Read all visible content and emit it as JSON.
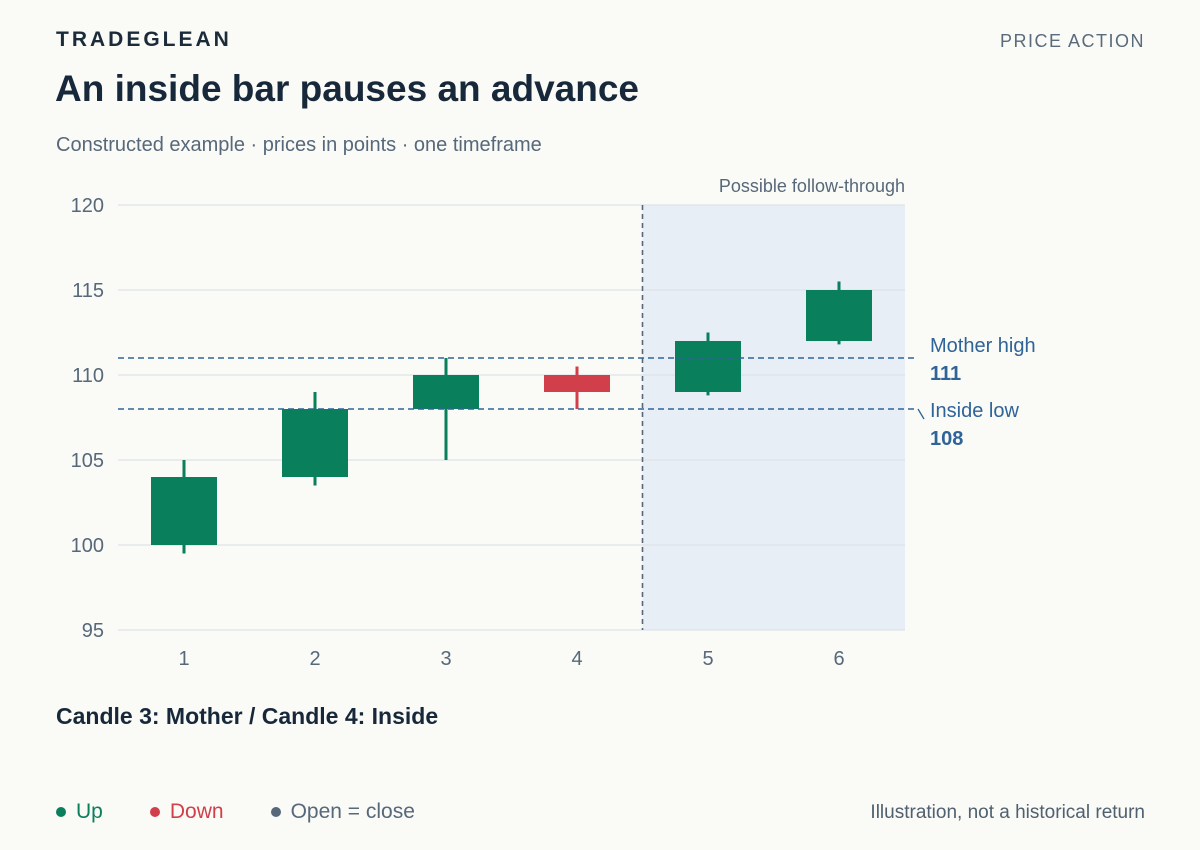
{
  "header": {
    "brand": "TRADEGLEAN",
    "category": "PRICE ACTION",
    "title": "An inside bar pauses an advance",
    "subtitle": "Constructed example · prices in points · one timeframe"
  },
  "chart_data": {
    "type": "candlestick",
    "categories": [
      "1",
      "2",
      "3",
      "4",
      "5",
      "6"
    ],
    "candles": [
      {
        "x": "1",
        "open": 100,
        "high": 105,
        "low": 99.5,
        "close": 104
      },
      {
        "x": "2",
        "open": 104,
        "high": 109,
        "low": 103.5,
        "close": 108
      },
      {
        "x": "3",
        "open": 108,
        "high": 111,
        "low": 105,
        "close": 110
      },
      {
        "x": "4",
        "open": 110,
        "high": 110.5,
        "low": 108,
        "close": 109
      },
      {
        "x": "5",
        "open": 109,
        "high": 112.5,
        "low": 108.8,
        "close": 112
      },
      {
        "x": "6",
        "open": 112,
        "high": 115.5,
        "low": 111.8,
        "close": 115
      }
    ],
    "ylim": [
      95,
      120
    ],
    "yticks": [
      95,
      100,
      105,
      110,
      115,
      120
    ],
    "grid": true,
    "shaded_region": {
      "label": "Possible follow-through",
      "from_after": "4",
      "to": "6"
    },
    "reference_lines": [
      {
        "name": "Mother high",
        "value": 111
      },
      {
        "name": "Inside low",
        "value": 108
      }
    ],
    "caption": "Candle 3: Mother / Candle 4: Inside",
    "legend": [
      {
        "label": "Up",
        "color": "#0a7f5c"
      },
      {
        "label": "Down",
        "color": "#d1404a"
      },
      {
        "label": "Open = close",
        "color": "#56687a"
      }
    ],
    "colors": {
      "up": "#0a7f5c",
      "down": "#d1404a",
      "reference": "#2f6498",
      "shade": "#e8eef6"
    }
  },
  "footer": {
    "note": "Illustration, not a historical return"
  }
}
